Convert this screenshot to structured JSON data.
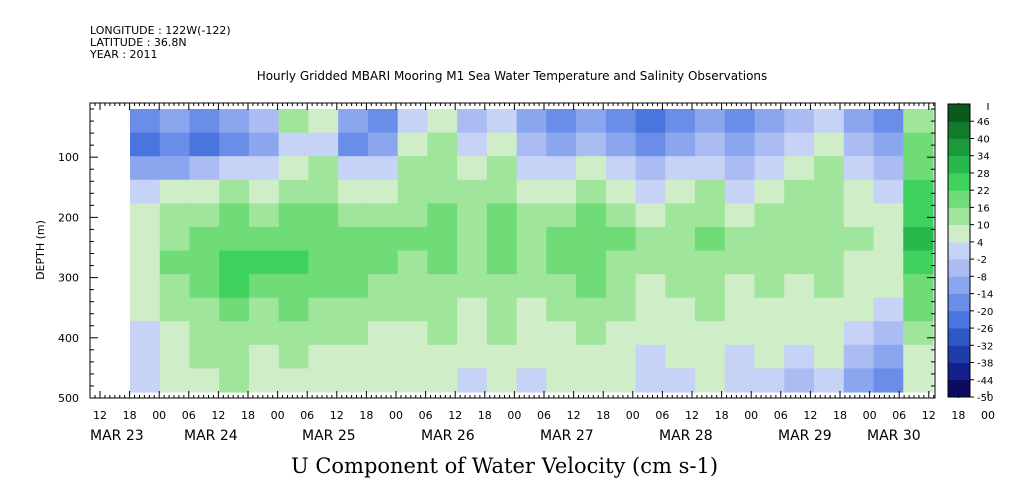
{
  "header": {
    "longitude": "LONGITUDE : 122W(-122)",
    "latitude": "LATITUDE : 36.8N",
    "year": "YEAR : 2011"
  },
  "chart_data": {
    "type": "heatmap",
    "title": "Hourly Gridded MBARI Mooring M1 Sea Water Temperature and Salinity Observations",
    "bottom_title": "U Component of Water Velocity (cm s-1)",
    "ylabel": "DEPTH (m)",
    "ylim": [
      500,
      10
    ],
    "y_ticks": [
      100,
      200,
      300,
      400,
      500
    ],
    "x_hour_labels": [
      "12",
      "18",
      "00",
      "06",
      "12",
      "18",
      "00",
      "06",
      "12",
      "18",
      "00",
      "06",
      "12",
      "18",
      "00",
      "06",
      "12",
      "18",
      "00",
      "06",
      "12",
      "18",
      "00",
      "06",
      "12",
      "18",
      "00",
      "06",
      "12",
      "18",
      "00",
      "06"
    ],
    "x_day_labels": [
      "MAR 23",
      "MAR 24",
      "MAR 25",
      "MAR 26",
      "MAR 27",
      "MAR 28",
      "MAR 29",
      "MAR 30"
    ],
    "colorbar": {
      "levels": [
        -50,
        -44,
        -38,
        -32,
        -26,
        -20,
        -14,
        -8,
        -2,
        4,
        10,
        16,
        22,
        28,
        34,
        40,
        46
      ],
      "colors": [
        "#0b0b5e",
        "#13208a",
        "#1e3caa",
        "#2e57c8",
        "#4a74de",
        "#6a8ee8",
        "#8aa6ee",
        "#aabcf2",
        "#c6d2f6",
        "#cfeec7",
        "#9fe59c",
        "#6fdc77",
        "#3fd25f",
        "#28b84c",
        "#1c9a3c",
        "#127a2c",
        "#0a5a1e"
      ],
      "tick_labels": [
        "46",
        "40",
        "34",
        "28",
        "22",
        "16",
        "10",
        "4",
        "-2",
        "-8",
        "-14",
        "-20",
        "-26",
        "-32",
        "-38",
        "-44",
        "-50"
      ]
    },
    "data_extent": {
      "x_start": "MAR 23 18:00",
      "depth_top": 20,
      "depth_bottom": 490
    },
    "data_rows_depth": [
      20,
      60,
      100,
      140,
      180,
      220,
      260,
      300,
      340,
      380,
      420,
      460
    ],
    "data_columns": [
      {
        "day": "MAR 23 18",
        "values": [
          -14,
          -20,
          -8,
          4,
          6,
          8,
          10,
          8,
          6,
          4,
          2,
          4
        ]
      },
      {
        "day": "MAR 24 00",
        "values": [
          -8,
          -14,
          -8,
          6,
          12,
          16,
          18,
          16,
          12,
          10,
          8,
          6
        ]
      },
      {
        "day": "MAR 24 06",
        "values": [
          -14,
          -20,
          -2,
          10,
          14,
          18,
          22,
          18,
          16,
          14,
          12,
          10
        ]
      },
      {
        "day": "MAR 24 12",
        "values": [
          -8,
          -14,
          4,
          12,
          18,
          22,
          26,
          24,
          20,
          16,
          14,
          12
        ]
      },
      {
        "day": "MAR 24 18",
        "values": [
          -2,
          -8,
          4,
          10,
          16,
          20,
          24,
          20,
          16,
          14,
          10,
          8
        ]
      },
      {
        "day": "MAR 25 00",
        "values": [
          16,
          4,
          10,
          14,
          18,
          22,
          24,
          20,
          18,
          14,
          12,
          10
        ]
      },
      {
        "day": "MAR 25 06",
        "values": [
          10,
          4,
          12,
          16,
          20,
          22,
          20,
          18,
          16,
          12,
          10,
          8
        ]
      },
      {
        "day": "MAR 25 12",
        "values": [
          -8,
          -14,
          4,
          10,
          16,
          20,
          22,
          18,
          14,
          12,
          10,
          8
        ]
      },
      {
        "day": "MAR 25 18",
        "values": [
          -14,
          -8,
          4,
          10,
          14,
          18,
          20,
          16,
          12,
          10,
          8,
          6
        ]
      },
      {
        "day": "MAR 26 00",
        "values": [
          4,
          10,
          12,
          14,
          16,
          18,
          16,
          14,
          12,
          10,
          8,
          6
        ]
      },
      {
        "day": "MAR 26 06",
        "values": [
          10,
          12,
          14,
          16,
          18,
          20,
          18,
          16,
          14,
          12,
          10,
          8
        ]
      },
      {
        "day": "MAR 26 12",
        "values": [
          -2,
          4,
          10,
          14,
          16,
          16,
          14,
          12,
          10,
          8,
          6,
          4
        ]
      },
      {
        "day": "MAR 26 18",
        "values": [
          4,
          10,
          12,
          16,
          18,
          20,
          18,
          16,
          14,
          12,
          10,
          8
        ]
      },
      {
        "day": "MAR 27 00",
        "values": [
          -8,
          -2,
          4,
          10,
          14,
          16,
          14,
          12,
          10,
          8,
          6,
          4
        ]
      },
      {
        "day": "MAR 27 06",
        "values": [
          -14,
          -8,
          4,
          10,
          16,
          20,
          18,
          16,
          12,
          10,
          8,
          6
        ]
      },
      {
        "day": "MAR 27 12",
        "values": [
          -8,
          -2,
          10,
          14,
          18,
          22,
          20,
          18,
          14,
          12,
          10,
          8
        ]
      },
      {
        "day": "MAR 27 18",
        "values": [
          -14,
          -8,
          4,
          10,
          14,
          18,
          16,
          14,
          12,
          10,
          8,
          6
        ]
      },
      {
        "day": "MAR 28 00",
        "values": [
          -20,
          -14,
          -2,
          4,
          10,
          14,
          12,
          10,
          8,
          6,
          4,
          2
        ]
      },
      {
        "day": "MAR 28 06",
        "values": [
          -14,
          -8,
          4,
          10,
          14,
          16,
          14,
          12,
          10,
          8,
          6,
          4
        ]
      },
      {
        "day": "MAR 28 12",
        "values": [
          -8,
          -2,
          4,
          12,
          16,
          18,
          16,
          14,
          12,
          10,
          8,
          6
        ]
      },
      {
        "day": "MAR 28 18",
        "values": [
          -14,
          -8,
          -2,
          4,
          10,
          14,
          12,
          10,
          8,
          6,
          4,
          2
        ]
      },
      {
        "day": "MAR 29 00",
        "values": [
          -8,
          -2,
          4,
          10,
          14,
          16,
          14,
          12,
          10,
          8,
          6,
          4
        ]
      },
      {
        "day": "MAR 29 06",
        "values": [
          -2,
          4,
          10,
          12,
          14,
          14,
          12,
          10,
          8,
          6,
          4,
          -2
        ]
      },
      {
        "day": "MAR 29 12",
        "values": [
          4,
          10,
          12,
          14,
          16,
          16,
          14,
          12,
          10,
          8,
          6,
          4
        ]
      },
      {
        "day": "MAR 29 18",
        "values": [
          -8,
          -2,
          4,
          8,
          10,
          12,
          10,
          8,
          6,
          4,
          -2,
          -8
        ]
      },
      {
        "day": "MAR 30 00",
        "values": [
          -14,
          -8,
          -2,
          4,
          8,
          10,
          8,
          6,
          4,
          -2,
          -8,
          -14
        ]
      },
      {
        "day": "MAR 30 06",
        "values": [
          16,
          22,
          22,
          26,
          28,
          30,
          26,
          22,
          18,
          14,
          10,
          8
        ]
      }
    ]
  }
}
